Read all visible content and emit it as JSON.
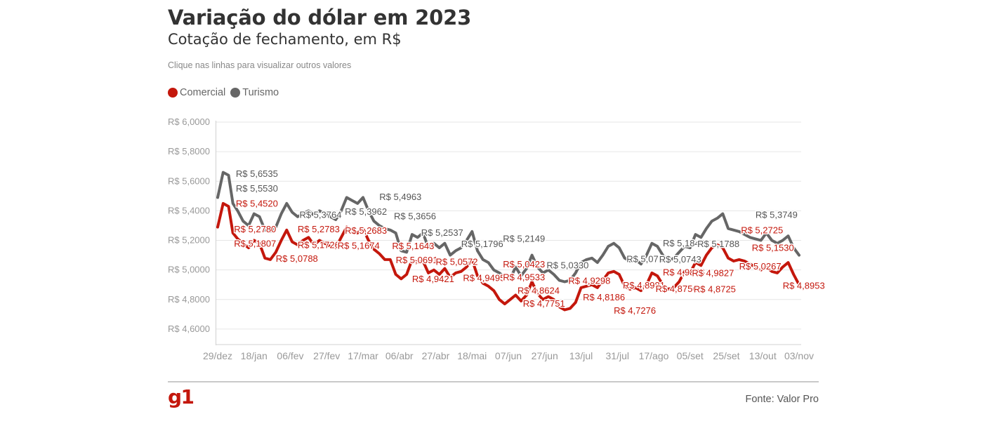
{
  "title": "Variação do dólar em 2023",
  "subtitle": "Cotação de fechamento, em R$",
  "hint": "Clique nas linhas para visualizar outros valores",
  "source": "Fonte: Valor Pro",
  "logo": "g1",
  "colors": {
    "comercial": "#c4170c",
    "turismo": "#666666",
    "logo": "#c4170c",
    "grid": "#e6e6e6"
  },
  "legend": [
    {
      "name": "Comercial",
      "color": "#c4170c"
    },
    {
      "name": "Turismo",
      "color": "#666666"
    }
  ],
  "chart_data": {
    "type": "line",
    "ylim": [
      4.5,
      6.0
    ],
    "grid": true,
    "legend_position": "top-left",
    "y_ticks": [
      {
        "value": 6.0,
        "label": "R$ 6,0000"
      },
      {
        "value": 5.8,
        "label": "R$ 5,8000"
      },
      {
        "value": 5.6,
        "label": "R$ 5,6000"
      },
      {
        "value": 5.4,
        "label": "R$ 5,4000"
      },
      {
        "value": 5.2,
        "label": "R$ 5,2000"
      },
      {
        "value": 5.0,
        "label": "R$ 5,0000"
      },
      {
        "value": 4.8,
        "label": "R$ 4,8000"
      },
      {
        "value": 4.6,
        "label": "R$ 4,6000"
      }
    ],
    "x_ticks": [
      "29/dez",
      "18/jan",
      "06/fev",
      "27/fev",
      "17/mar",
      "06/abr",
      "27/abr",
      "18/mai",
      "07/jun",
      "27/jun",
      "13/jul",
      "31/jul",
      "17/ago",
      "05/set",
      "25/set",
      "13/out",
      "03/nov"
    ],
    "x_range": [
      0,
      16
    ],
    "series": [
      {
        "name": "Turismo",
        "color": "#666666",
        "x": [
          0,
          0.15,
          0.3,
          0.42,
          0.55,
          0.7,
          0.85,
          1.0,
          1.15,
          1.3,
          1.45,
          1.6,
          1.75,
          1.9,
          2.05,
          2.2,
          2.35,
          2.5,
          2.65,
          2.8,
          2.95,
          3.1,
          3.25,
          3.4,
          3.55,
          3.7,
          3.85,
          4.0,
          4.15,
          4.3,
          4.45,
          4.6,
          4.75,
          4.9,
          5.05,
          5.2,
          5.35,
          5.5,
          5.65,
          5.8,
          5.95,
          6.1,
          6.25,
          6.4,
          6.55,
          6.7,
          6.85,
          7.0,
          7.15,
          7.3,
          7.45,
          7.6,
          7.75,
          7.9,
          8.05,
          8.2,
          8.35,
          8.5,
          8.65,
          8.8,
          8.95,
          9.1,
          9.25,
          9.4,
          9.55,
          9.7,
          9.85,
          10.0,
          10.15,
          10.3,
          10.45,
          10.6,
          10.75,
          10.9,
          11.05,
          11.2,
          11.35,
          11.5,
          11.65,
          11.8,
          11.95,
          12.1,
          12.25,
          12.4,
          12.55,
          12.7,
          12.85,
          13.0,
          13.15,
          13.3,
          13.45,
          13.6,
          13.75,
          13.9,
          14.05,
          14.2,
          14.35,
          14.5,
          14.65,
          14.8,
          14.95,
          15.1,
          15.25,
          15.4,
          15.55,
          15.7,
          15.85,
          16.0
        ],
        "values": [
          5.49,
          5.66,
          5.64,
          5.45,
          5.4,
          5.33,
          5.3,
          5.38,
          5.36,
          5.27,
          5.26,
          5.29,
          5.38,
          5.45,
          5.39,
          5.36,
          5.38,
          5.4,
          5.37,
          5.4,
          5.38,
          5.36,
          5.34,
          5.4,
          5.49,
          5.47,
          5.45,
          5.49,
          5.4,
          5.33,
          5.3,
          5.28,
          5.27,
          5.25,
          5.13,
          5.12,
          5.24,
          5.22,
          5.25,
          5.15,
          5.18,
          5.15,
          5.18,
          5.1,
          5.13,
          5.15,
          5.2,
          5.26,
          5.13,
          5.07,
          5.05,
          5.0,
          4.98,
          4.95,
          4.94,
          5.02,
          4.96,
          5.01,
          5.1,
          5.02,
          4.98,
          5.0,
          4.97,
          4.93,
          4.92,
          4.93,
          4.98,
          5.05,
          5.07,
          5.08,
          5.05,
          5.1,
          5.16,
          5.18,
          5.15,
          5.08,
          5.06,
          5.07,
          5.04,
          5.1,
          5.18,
          5.16,
          5.1,
          5.06,
          5.08,
          5.12,
          5.16,
          5.15,
          5.24,
          5.22,
          5.28,
          5.33,
          5.35,
          5.38,
          5.28,
          5.27,
          5.26,
          5.24,
          5.22,
          5.21,
          5.2,
          5.25,
          5.2,
          5.18,
          5.2,
          5.23,
          5.15,
          5.1
        ]
      },
      {
        "name": "Comercial",
        "color": "#c4170c",
        "x": [
          0,
          0.15,
          0.3,
          0.42,
          0.55,
          0.7,
          0.85,
          1.0,
          1.15,
          1.3,
          1.45,
          1.6,
          1.75,
          1.9,
          2.05,
          2.2,
          2.35,
          2.5,
          2.65,
          2.8,
          2.95,
          3.1,
          3.25,
          3.4,
          3.55,
          3.7,
          3.85,
          4.0,
          4.15,
          4.3,
          4.45,
          4.6,
          4.75,
          4.9,
          5.05,
          5.2,
          5.35,
          5.5,
          5.65,
          5.8,
          5.95,
          6.1,
          6.25,
          6.4,
          6.55,
          6.7,
          6.85,
          7.0,
          7.15,
          7.3,
          7.45,
          7.6,
          7.75,
          7.9,
          8.05,
          8.2,
          8.35,
          8.5,
          8.65,
          8.8,
          8.95,
          9.1,
          9.25,
          9.4,
          9.55,
          9.7,
          9.85,
          10.0,
          10.15,
          10.3,
          10.45,
          10.6,
          10.75,
          10.9,
          11.05,
          11.2,
          11.35,
          11.5,
          11.65,
          11.8,
          11.95,
          12.1,
          12.25,
          12.4,
          12.55,
          12.7,
          12.85,
          13.0,
          13.15,
          13.3,
          13.45,
          13.6,
          13.75,
          13.9,
          14.05,
          14.2,
          14.35,
          14.5,
          14.65,
          14.8,
          14.95,
          15.1,
          15.25,
          15.4,
          15.55,
          15.7,
          15.85,
          16.0
        ],
        "values": [
          5.29,
          5.45,
          5.43,
          5.25,
          5.21,
          5.18,
          5.15,
          5.2,
          5.18,
          5.08,
          5.07,
          5.12,
          5.2,
          5.27,
          5.19,
          5.17,
          5.2,
          5.22,
          5.17,
          5.2,
          5.18,
          5.16,
          5.15,
          5.22,
          5.29,
          5.27,
          5.25,
          5.28,
          5.2,
          5.14,
          5.11,
          5.07,
          5.07,
          4.97,
          4.94,
          4.97,
          5.07,
          5.05,
          5.06,
          4.98,
          5.0,
          4.97,
          5.01,
          4.95,
          4.98,
          4.99,
          5.02,
          5.07,
          4.96,
          4.91,
          4.89,
          4.86,
          4.8,
          4.77,
          4.8,
          4.83,
          4.79,
          4.83,
          4.92,
          4.84,
          4.8,
          4.82,
          4.8,
          4.75,
          4.73,
          4.74,
          4.78,
          4.88,
          4.89,
          4.9,
          4.88,
          4.93,
          4.98,
          4.99,
          4.97,
          4.89,
          4.87,
          4.88,
          4.86,
          4.9,
          4.98,
          4.96,
          4.9,
          4.87,
          4.88,
          4.92,
          4.99,
          4.98,
          5.05,
          5.03,
          5.1,
          5.15,
          5.17,
          5.15,
          5.08,
          5.06,
          5.07,
          5.06,
          5.04,
          5.02,
          5.0,
          5.02,
          4.99,
          4.98,
          5.02,
          5.05,
          4.97,
          4.9
        ]
      }
    ],
    "annotations": [
      {
        "series": "Turismo",
        "x": 0.5,
        "value": 5.6535,
        "text": "R$ 5,6535"
      },
      {
        "series": "Turismo",
        "x": 0.5,
        "value": 5.553,
        "text": "R$ 5,5530"
      },
      {
        "series": "Comercial",
        "x": 0.5,
        "value": 5.452,
        "text": "R$ 5,4520"
      },
      {
        "series": "Comercial",
        "x": 0.45,
        "value": 5.278,
        "text": "R$ 5,2780"
      },
      {
        "series": "Comercial",
        "x": 0.45,
        "value": 5.1807,
        "text": "R$ 5,1807"
      },
      {
        "series": "Comercial",
        "x": 1.6,
        "value": 5.0788,
        "text": "R$ 5,0788"
      },
      {
        "series": "Turismo",
        "x": 2.25,
        "value": 5.3764,
        "text": "R$ 5,3764"
      },
      {
        "series": "Comercial",
        "x": 2.2,
        "value": 5.2783,
        "text": "R$ 5,2783"
      },
      {
        "series": "Comercial",
        "x": 2.2,
        "value": 5.1726,
        "text": "R$ 5,1726"
      },
      {
        "series": "Turismo",
        "x": 3.5,
        "value": 5.3962,
        "text": "R$ 5,3962"
      },
      {
        "series": "Comercial",
        "x": 3.5,
        "value": 5.2683,
        "text": "R$ 5,2683"
      },
      {
        "series": "Comercial",
        "x": 3.3,
        "value": 5.1674,
        "text": "R$ 5,1674"
      },
      {
        "series": "Turismo",
        "x": 4.45,
        "value": 5.4963,
        "text": "R$ 5,4963"
      },
      {
        "series": "Turismo",
        "x": 4.85,
        "value": 5.3656,
        "text": "R$ 5,3656"
      },
      {
        "series": "Comercial",
        "x": 4.8,
        "value": 5.1643,
        "text": "R$ 5,1643"
      },
      {
        "series": "Turismo",
        "x": 5.6,
        "value": 5.2537,
        "text": "R$ 5,2537"
      },
      {
        "series": "Comercial",
        "x": 4.9,
        "value": 5.0691,
        "text": "R$ 5,0691"
      },
      {
        "series": "Comercial",
        "x": 5.35,
        "value": 4.9421,
        "text": "R$ 4,9421"
      },
      {
        "series": "Turismo",
        "x": 6.7,
        "value": 5.1796,
        "text": "R$ 5,1796"
      },
      {
        "series": "Comercial",
        "x": 6.0,
        "value": 5.0572,
        "text": "R$ 5,0572"
      },
      {
        "series": "Comercial",
        "x": 6.75,
        "value": 4.9495,
        "text": "R$ 4,9495"
      },
      {
        "series": "Turismo",
        "x": 7.85,
        "value": 5.2149,
        "text": "R$ 5,2149"
      },
      {
        "series": "Comercial",
        "x": 7.85,
        "value": 5.0423,
        "text": "R$ 5,0423"
      },
      {
        "series": "Comercial",
        "x": 7.85,
        "value": 4.9533,
        "text": "R$ 4,9533"
      },
      {
        "series": "Comercial",
        "x": 8.25,
        "value": 4.8624,
        "text": "R$ 4,8624"
      },
      {
        "series": "Comercial",
        "x": 8.4,
        "value": 4.7751,
        "text": "R$ 4,7751"
      },
      {
        "series": "Turismo",
        "x": 9.05,
        "value": 5.033,
        "text": "R$ 5,0330"
      },
      {
        "series": "Comercial",
        "x": 9.65,
        "value": 4.9298,
        "text": "R$ 4,9298"
      },
      {
        "series": "Comercial",
        "x": 10.05,
        "value": 4.8186,
        "text": "R$ 4,8186"
      },
      {
        "series": "Comercial",
        "x": 10.9,
        "value": 4.7276,
        "text": "R$ 4,7276"
      },
      {
        "series": "Turismo",
        "x": 11.25,
        "value": 5.0768,
        "text": "R$ 5,0768"
      },
      {
        "series": "Comercial",
        "x": 11.15,
        "value": 4.8981,
        "text": "R$ 4,8981"
      },
      {
        "series": "Turismo",
        "x": 12.25,
        "value": 5.1846,
        "text": "R$ 5,1846"
      },
      {
        "series": "Comercial",
        "x": 12.25,
        "value": 4.9868,
        "text": "R$ 4,9868"
      },
      {
        "series": "Turismo",
        "x": 12.15,
        "value": 5.0743,
        "text": "R$ 5,0743"
      },
      {
        "series": "Comercial",
        "x": 12.05,
        "value": 4.875,
        "text": "R$ 4,8750"
      },
      {
        "series": "Turismo",
        "x": 13.2,
        "value": 5.1788,
        "text": "R$ 5,1788"
      },
      {
        "series": "Comercial",
        "x": 13.05,
        "value": 4.9827,
        "text": "R$ 4,9827"
      },
      {
        "series": "Comercial",
        "x": 13.1,
        "value": 4.8725,
        "text": "R$ 4,8725"
      },
      {
        "series": "Turismo",
        "x": 14.8,
        "value": 5.3749,
        "text": "R$ 5,3749"
      },
      {
        "series": "Comercial",
        "x": 14.4,
        "value": 5.2725,
        "text": "R$ 5,2725"
      },
      {
        "series": "Comercial",
        "x": 14.7,
        "value": 5.153,
        "text": "R$ 5,1530"
      },
      {
        "series": "Comercial",
        "x": 14.35,
        "value": 5.0267,
        "text": "R$ 5,0267"
      },
      {
        "series": "Comercial",
        "x": 15.55,
        "value": 4.8953,
        "text": "R$ 4,8953"
      }
    ]
  }
}
